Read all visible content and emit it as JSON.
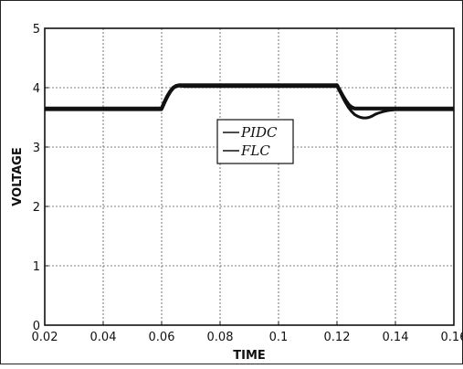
{
  "chart_data": {
    "type": "line",
    "xlabel": "TIME",
    "ylabel": "VOLTAGE",
    "xlim": [
      0.02,
      0.16
    ],
    "ylim": [
      0,
      5
    ],
    "x_ticks": [
      0.02,
      0.04,
      0.06,
      0.08,
      0.1,
      0.12,
      0.14,
      0.16
    ],
    "x_tick_labels": [
      "0.02",
      "0.04",
      "0.06",
      "0.08",
      "0.1",
      "0.12",
      "0.14",
      "0.16"
    ],
    "y_ticks": [
      0,
      1,
      2,
      3,
      4,
      5
    ],
    "y_tick_labels": [
      "0",
      "1",
      "2",
      "3",
      "4",
      "5"
    ],
    "grid": true,
    "legend_position": "center",
    "series": [
      {
        "name": "PIDC",
        "color": "#111111",
        "x": [
          0.02,
          0.06,
          0.061,
          0.062,
          0.063,
          0.064,
          0.065,
          0.066,
          0.068,
          0.07,
          0.12,
          0.121,
          0.122,
          0.123,
          0.124,
          0.125,
          0.126,
          0.127,
          0.128,
          0.129,
          0.13,
          0.131,
          0.132,
          0.133,
          0.134,
          0.136,
          0.138,
          0.14,
          0.16
        ],
        "y": [
          3.63,
          3.63,
          3.74,
          3.84,
          3.93,
          3.99,
          4.02,
          4.03,
          4.02,
          4.02,
          4.02,
          3.93,
          3.83,
          3.74,
          3.66,
          3.6,
          3.55,
          3.52,
          3.5,
          3.49,
          3.49,
          3.5,
          3.52,
          3.55,
          3.57,
          3.6,
          3.62,
          3.63,
          3.63
        ]
      },
      {
        "name": "FLC",
        "color": "#111111",
        "x": [
          0.02,
          0.06,
          0.061,
          0.062,
          0.063,
          0.064,
          0.065,
          0.066,
          0.07,
          0.12,
          0.121,
          0.122,
          0.123,
          0.124,
          0.125,
          0.126,
          0.128,
          0.13,
          0.16
        ],
        "y": [
          3.65,
          3.65,
          3.76,
          3.86,
          3.94,
          4.0,
          4.03,
          4.04,
          4.04,
          4.04,
          3.95,
          3.86,
          3.78,
          3.71,
          3.67,
          3.65,
          3.65,
          3.65,
          3.65
        ]
      }
    ]
  }
}
